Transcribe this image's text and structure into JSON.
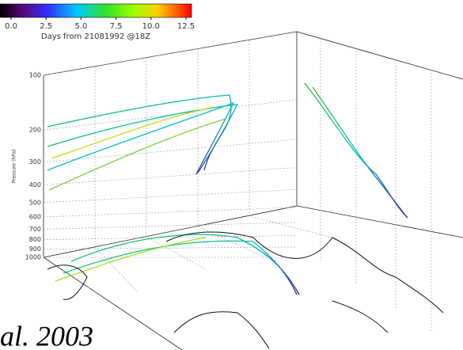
{
  "chart_data": {
    "type": "trajectory",
    "colorbar": {
      "label": "Days from 21081992 @18Z",
      "lim": [
        0,
        12.5
      ],
      "ticks": [
        {
          "value": 0,
          "label": "0.0"
        },
        2.5,
        {
          "value": 5,
          "label": "5.0"
        },
        7.5,
        {
          "value": 10,
          "label": "10.0"
        },
        12.5
      ]
    },
    "ylabel": "Pressure (hPa)",
    "log": true,
    "ylim": [
      1000,
      100
    ],
    "yticks": [
      100,
      200,
      300,
      400,
      500,
      600,
      700,
      800,
      900,
      1000
    ],
    "caption": "al. 2003"
  }
}
